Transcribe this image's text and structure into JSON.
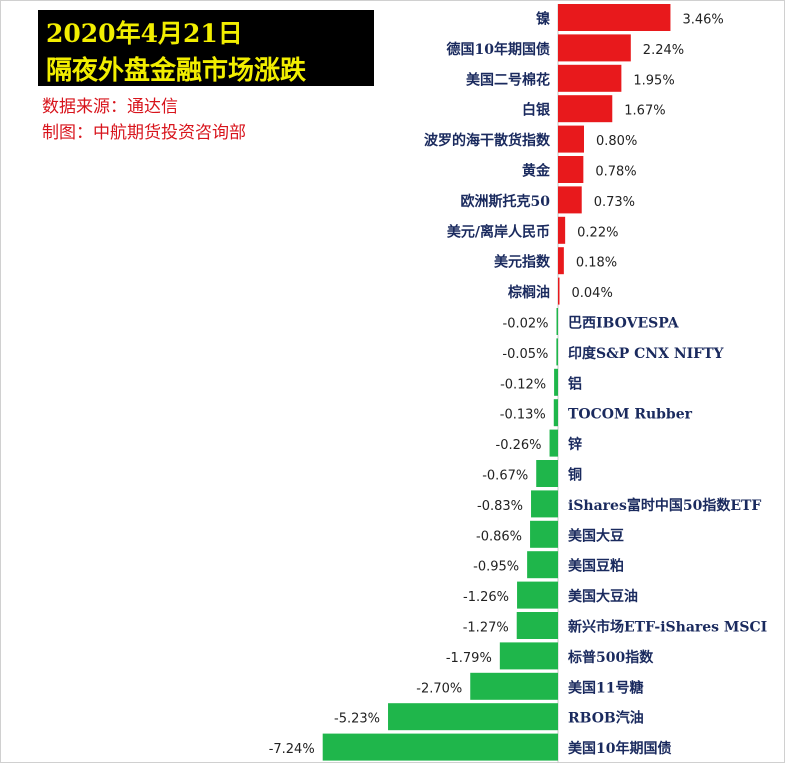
{
  "header": {
    "title_line1": "2020年4月21日",
    "title_line2": "隔夜外盘金融市场涨跌",
    "source": "数据来源：通达信",
    "author": "制图：中航期货投资咨询部"
  },
  "colors": {
    "positive": "#e8191c",
    "negative": "#1fb64b",
    "label": "#1a2a5e",
    "value": "#222222",
    "title_bg": "#000000",
    "title_text": "#f2ee00",
    "source_text": "#d8141c"
  },
  "chart_data": {
    "type": "bar",
    "orientation": "horizontal",
    "title": "隔夜外盘金融市场涨跌",
    "xlabel": "",
    "ylabel": "",
    "unit": "%",
    "categories": [
      "镍",
      "德国10年期国债",
      "美国二号棉花",
      "白银",
      "波罗的海干散货指数",
      "黄金",
      "欧洲斯托克50",
      "美元/离岸人民币",
      "美元指数",
      "棕榈油",
      "巴西IBOVESPA",
      "印度S&P CNX NIFTY",
      "铝",
      "TOCOM Rubber",
      "锌",
      "铜",
      "iShares富时中国50指数ETF",
      "美国大豆",
      "美国豆粕",
      "美国大豆油",
      "新兴市场ETF-iShares MSCI",
      "标普500指数",
      "美国11号糖",
      "RBOB汽油",
      "美国10年期国债"
    ],
    "values": [
      3.46,
      2.24,
      1.95,
      1.67,
      0.8,
      0.78,
      0.73,
      0.22,
      0.18,
      0.04,
      -0.02,
      -0.05,
      -0.12,
      -0.13,
      -0.26,
      -0.67,
      -0.83,
      -0.86,
      -0.95,
      -1.26,
      -1.27,
      -1.79,
      -2.7,
      -5.23,
      -7.24
    ],
    "value_labels": [
      "3.46%",
      "2.24%",
      "1.95%",
      "1.67%",
      "0.80%",
      "0.78%",
      "0.73%",
      "0.22%",
      "0.18%",
      "0.04%",
      "-0.02%",
      "-0.05%",
      "-0.12%",
      "-0.13%",
      "-0.26%",
      "-0.67%",
      "-0.83%",
      "-0.86%",
      "-0.95%",
      "-1.26%",
      "-1.27%",
      "-1.79%",
      "-2.70%",
      "-5.23%",
      "-7.24%"
    ],
    "legend": "none",
    "grid": false
  }
}
